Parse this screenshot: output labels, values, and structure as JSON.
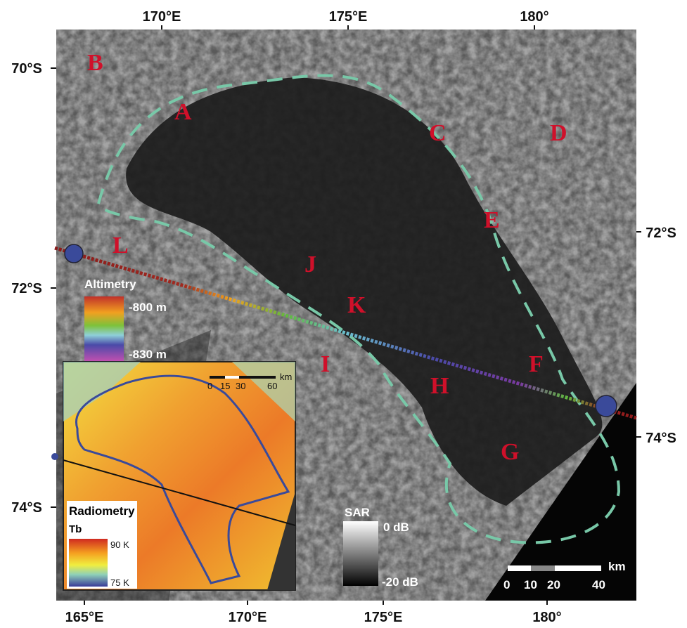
{
  "map": {
    "top_axis_labels": [
      "170°E",
      "175°E",
      "180°"
    ],
    "bottom_axis_labels": [
      "165°E",
      "170°E",
      "175°E",
      "180°"
    ],
    "left_axis_labels": [
      "70°S",
      "72°S",
      "74°S"
    ],
    "right_axis_labels": [
      "72°S",
      "74°S"
    ],
    "region_labels": [
      "A",
      "B",
      "C",
      "D",
      "E",
      "F",
      "G",
      "H",
      "I",
      "J",
      "K",
      "L"
    ],
    "altimetry_legend": {
      "title": "Altimetry",
      "max": "-800 m",
      "min": "-830 m"
    },
    "radiometry_inset": {
      "title": "Radiometry",
      "quantity": "Tb",
      "max": "90 K",
      "min": "75 K",
      "scale_ticks": [
        "0",
        "15",
        "30",
        "60"
      ],
      "scale_unit": "km"
    },
    "sar_legend": {
      "title": "SAR",
      "max": "0 dB",
      "min": "-20 dB"
    },
    "scale_bar": {
      "ticks": [
        "0",
        "10",
        "20",
        "40"
      ],
      "unit": "km"
    }
  }
}
